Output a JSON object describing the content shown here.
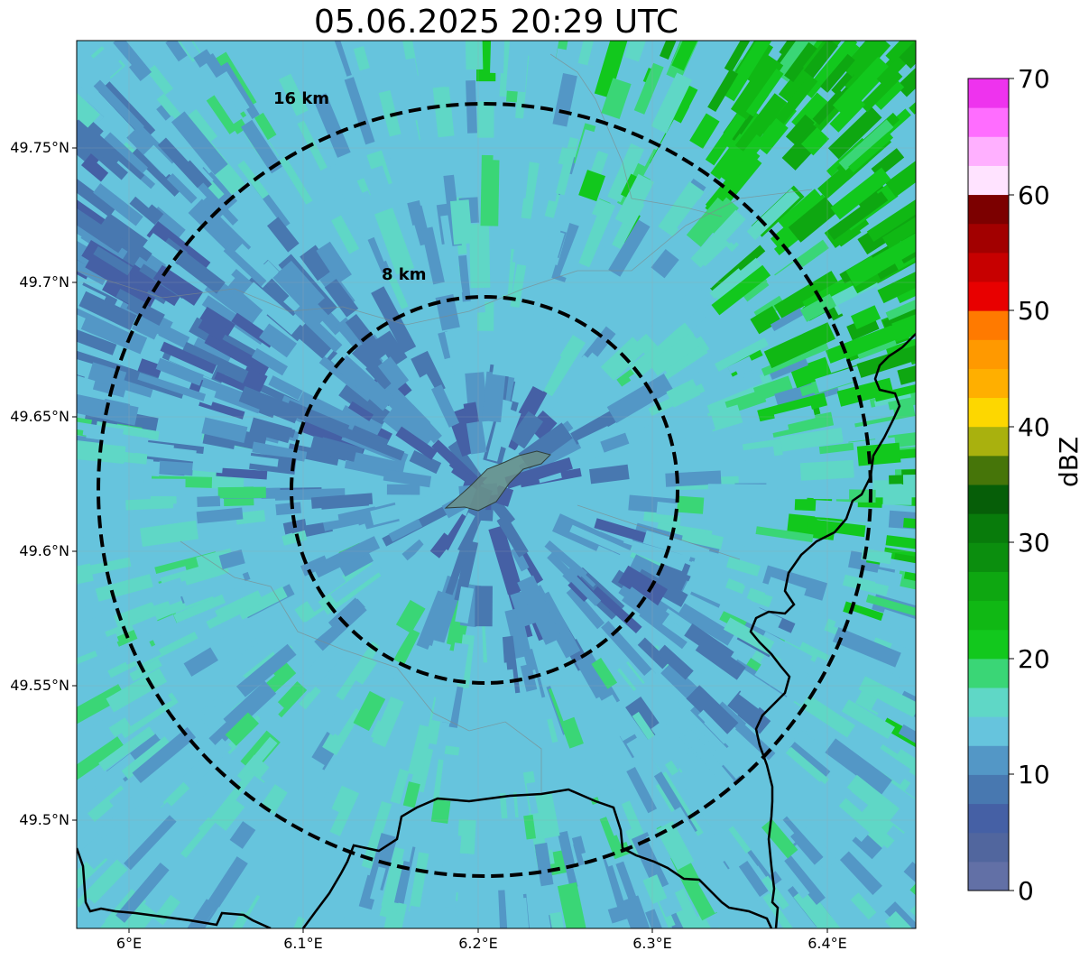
{
  "title": "05.06.2025 20:29 UTC",
  "map": {
    "lat_ticks": [
      "49.75°N",
      "49.7°N",
      "49.65°N",
      "49.6°N",
      "49.55°N",
      "49.5°N"
    ],
    "lon_ticks": [
      "6°E",
      "6.1°E",
      "6.2°E",
      "6.3°E",
      "6.4°E"
    ],
    "range_rings": [
      {
        "label": "8 km",
        "radius_km": 8
      },
      {
        "label": "16 km",
        "radius_km": 16
      }
    ],
    "background_color": "#66c4dd",
    "border_color": "#000000"
  },
  "colorbar": {
    "label": "dBZ",
    "ticks": [
      "0",
      "10",
      "20",
      "30",
      "40",
      "50",
      "60",
      "70"
    ],
    "range": [
      0,
      70
    ],
    "colors": [
      "#6270a6",
      "#51669e",
      "#4560a5",
      "#4878b0",
      "#5397c6",
      "#66c4dd",
      "#5fd7c6",
      "#3ad676",
      "#12c81d",
      "#10b814",
      "#0ea711",
      "#0b8e0e",
      "#087b0b",
      "#065e08",
      "#467509",
      "#a9b10e",
      "#fdd700",
      "#ffaf00",
      "#ff9900",
      "#ff7a00",
      "#e80000",
      "#c70000",
      "#a20000",
      "#7c0000",
      "#ffe3ff",
      "#ffb0ff",
      "#ff6dff",
      "#ee33ee"
    ]
  }
}
